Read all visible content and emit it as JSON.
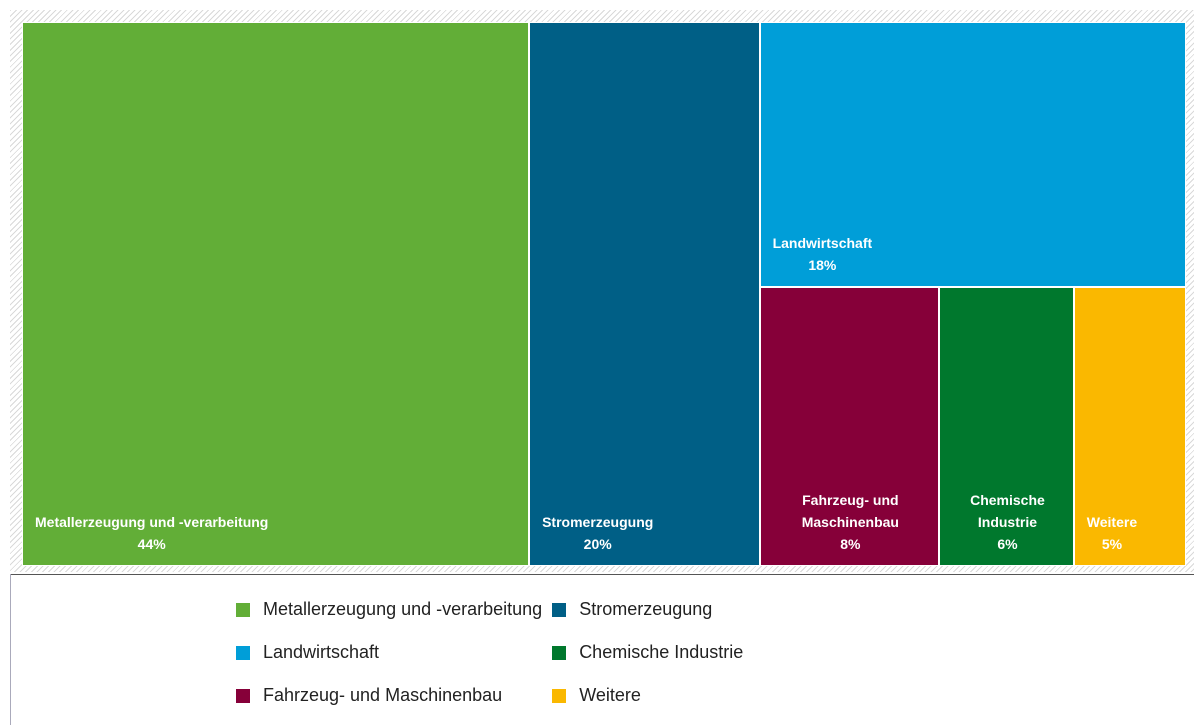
{
  "chart_data": {
    "type": "treemap",
    "categories": [
      "Metallerzeugung und -verarbeitung",
      "Stromerzeugung",
      "Landwirtschaft",
      "Fahrzeug- und Maschinenbau",
      "Chemische Industrie",
      "Weitere"
    ],
    "values": [
      44,
      20,
      18,
      8,
      6,
      5
    ],
    "value_labels": [
      "44%",
      "20%",
      "18%",
      "8%",
      "6%",
      "5%"
    ],
    "colors": [
      "#62ae37",
      "#005f86",
      "#009ed8",
      "#860039",
      "#00782d",
      "#fab800"
    ]
  }
}
